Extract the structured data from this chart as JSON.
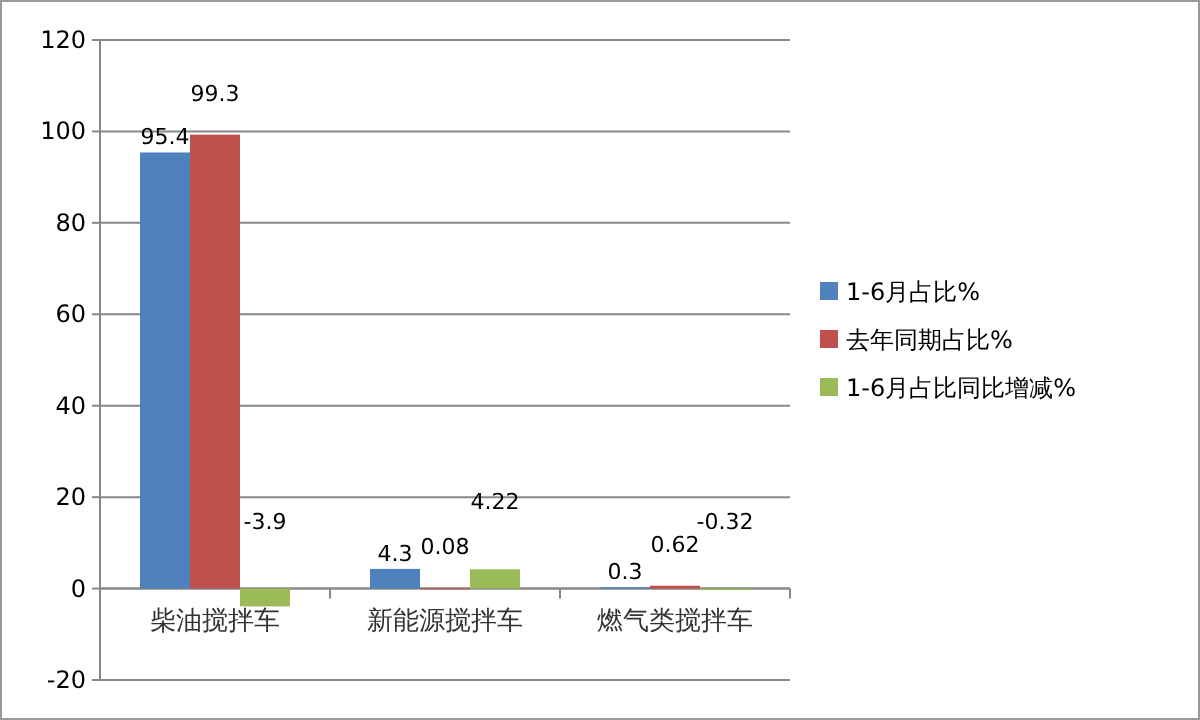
{
  "chart_data": {
    "type": "bar",
    "categories": [
      "柴油搅拌车",
      "新能源搅拌车",
      "燃气类搅拌车"
    ],
    "series": [
      {
        "name": "1-6月占比%",
        "color": "#4f81bd",
        "values": [
          95.4,
          4.3,
          0.3
        ]
      },
      {
        "name": "去年同期占比%",
        "color": "#c0504d",
        "values": [
          99.3,
          0.08,
          0.62
        ]
      },
      {
        "name": "1-6月占比同比增减%",
        "color": "#9bbb59",
        "values": [
          -3.9,
          4.22,
          -0.32
        ]
      }
    ],
    "ylim": [
      -20,
      120
    ],
    "yticks": [
      -20,
      0,
      20,
      40,
      60,
      80,
      100,
      120
    ],
    "grid": "y",
    "legend": "right",
    "data_labels": true
  }
}
